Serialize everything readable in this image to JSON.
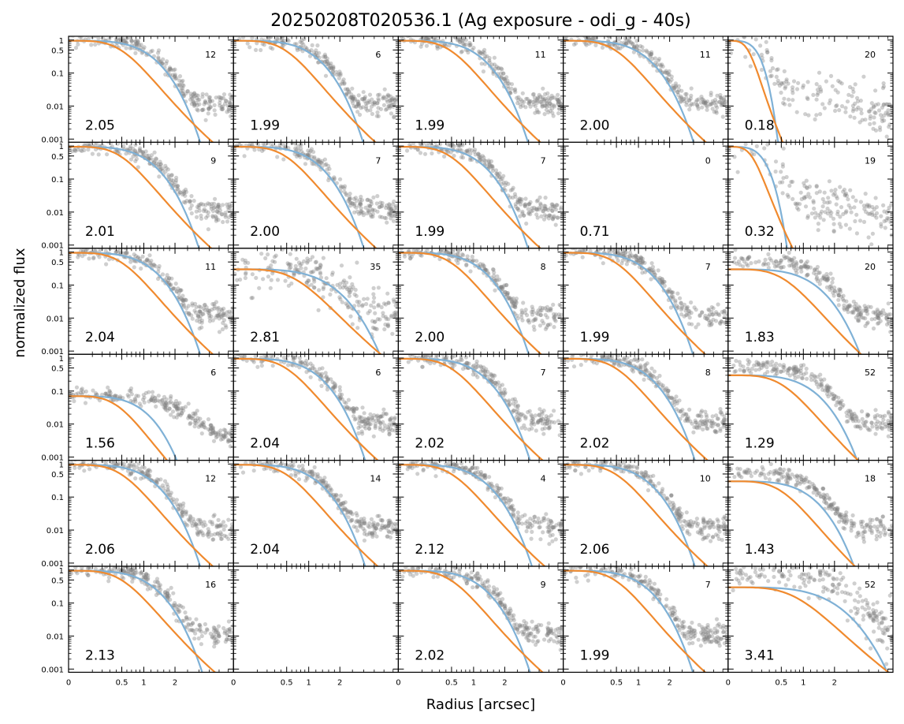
{
  "chart_data": {
    "type": "scatter",
    "title": "20250208T020536.1 (Ag exposure - odi_g - 40s)",
    "xlabel": "Radius [arcsec]",
    "ylabel": "normalized flux",
    "y_scale": "log",
    "x_scale": "sqrt-like",
    "ylim": [
      0.0008,
      1.3
    ],
    "xlim": [
      0,
      4.8
    ],
    "y_ticks": [
      {
        "value": 1,
        "label": "1"
      },
      {
        "value": 0.5,
        "label": "0.5"
      },
      {
        "value": 0.1,
        "label": "0.1"
      },
      {
        "value": 0.01,
        "label": "0.01"
      },
      {
        "value": 0.001,
        "label": "0.001"
      }
    ],
    "x_ticks": [
      {
        "value": 0,
        "label": "0"
      },
      {
        "value": 0.5,
        "label": "0.5"
      },
      {
        "value": 1,
        "label": "1"
      },
      {
        "value": 2,
        "label": "2"
      }
    ],
    "grid": false,
    "series_colors": {
      "points": "#808080",
      "gaussian": "#7fb1d6",
      "moffat": "#f08a2e"
    },
    "rows": 6,
    "cols": 5,
    "panels": [
      {
        "fwhm": "2.05",
        "count": "12",
        "mode": "normal",
        "scale": 1.0
      },
      {
        "fwhm": "1.99",
        "count": "6",
        "mode": "normal",
        "scale": 0.97
      },
      {
        "fwhm": "1.99",
        "count": "11",
        "mode": "normal",
        "scale": 0.97
      },
      {
        "fwhm": "2.00",
        "count": "11",
        "mode": "normal",
        "scale": 0.98
      },
      {
        "fwhm": "0.18",
        "count": "20",
        "mode": "narrow",
        "scale": 0.25
      },
      {
        "fwhm": "2.01",
        "count": "9",
        "mode": "normal",
        "scale": 0.98
      },
      {
        "fwhm": "2.00",
        "count": "7",
        "mode": "normal",
        "scale": 0.98
      },
      {
        "fwhm": "1.99",
        "count": "7",
        "mode": "normal",
        "scale": 0.97
      },
      {
        "fwhm": "0.71",
        "count": "0",
        "mode": "empty",
        "scale": 0
      },
      {
        "fwhm": "0.32",
        "count": "19",
        "mode": "narrow",
        "scale": 0.35
      },
      {
        "fwhm": "2.04",
        "count": "11",
        "mode": "normal",
        "scale": 1.0
      },
      {
        "fwhm": "2.81",
        "count": "35",
        "mode": "broad",
        "scale": 1.35
      },
      {
        "fwhm": "2.00",
        "count": "8",
        "mode": "normal",
        "scale": 0.98
      },
      {
        "fwhm": "1.99",
        "count": "7",
        "mode": "normal",
        "scale": 0.97
      },
      {
        "fwhm": "1.83",
        "count": "20",
        "mode": "flat",
        "scale": 1.1
      },
      {
        "fwhm": "1.56",
        "count": "6",
        "mode": "faint",
        "scale": 0.85
      },
      {
        "fwhm": "2.04",
        "count": "6",
        "mode": "normal",
        "scale": 1.0
      },
      {
        "fwhm": "2.02",
        "count": "7",
        "mode": "normal",
        "scale": 1.0
      },
      {
        "fwhm": "2.02",
        "count": "8",
        "mode": "normal",
        "scale": 1.0
      },
      {
        "fwhm": "1.29",
        "count": "52",
        "mode": "flat",
        "scale": 1.05
      },
      {
        "fwhm": "2.06",
        "count": "12",
        "mode": "normal",
        "scale": 1.0
      },
      {
        "fwhm": "2.04",
        "count": "14",
        "mode": "normal",
        "scale": 1.0
      },
      {
        "fwhm": "2.12",
        "count": "4",
        "mode": "normal",
        "scale": 1.03
      },
      {
        "fwhm": "2.06",
        "count": "10",
        "mode": "normal",
        "scale": 1.0
      },
      {
        "fwhm": "1.43",
        "count": "18",
        "mode": "flat",
        "scale": 1.0
      },
      {
        "fwhm": "2.13",
        "count": "16",
        "mode": "normal",
        "scale": 1.03
      },
      {
        "fwhm": "",
        "count": "",
        "mode": "blank",
        "scale": 0
      },
      {
        "fwhm": "2.02",
        "count": "9",
        "mode": "normal",
        "scale": 1.0
      },
      {
        "fwhm": "1.99",
        "count": "7",
        "mode": "normal",
        "scale": 0.97
      },
      {
        "fwhm": "3.41",
        "count": "52",
        "mode": "broad",
        "scale": 1.6
      }
    ]
  }
}
